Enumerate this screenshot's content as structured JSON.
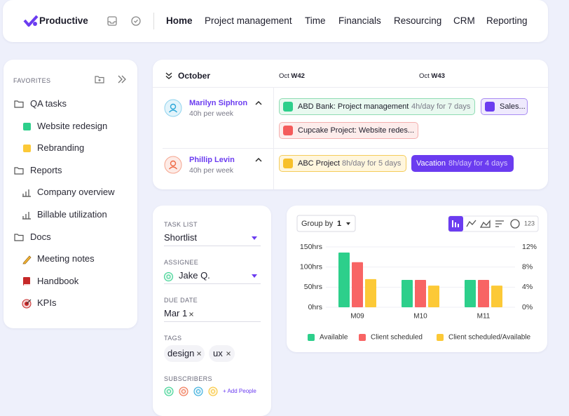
{
  "nav": {
    "brand": "Productive",
    "links": [
      "Home",
      "Project management",
      "Time",
      "Financials",
      "Resourcing",
      "CRM",
      "Reporting"
    ]
  },
  "sidebar": {
    "heading": "FAVORITES",
    "items": [
      "QA tasks",
      "Website redesign",
      "Rebranding",
      "Reports",
      "Company overview",
      "Billable utilization",
      "Docs",
      "Meeting notes",
      "Handbook",
      "KPIs"
    ]
  },
  "schedule": {
    "month": "October",
    "weeks": [
      {
        "month": "Oct",
        "week": "W42"
      },
      {
        "month": "Oct",
        "week": "W43"
      }
    ],
    "people": [
      {
        "name": "Marilyn Siphron",
        "capacity": "40h per week",
        "bookings": [
          {
            "title": "ABD Bank: Project management",
            "detail": "4h/day for 7 days"
          },
          {
            "title": "Sales..."
          },
          {
            "title": "Cupcake Project: Website redes..."
          }
        ]
      },
      {
        "name": "Phillip Levin",
        "capacity": "40h per week",
        "bookings": [
          {
            "title": "ABC Project",
            "detail": "8h/day for 5 days"
          },
          {
            "title": "Vacation",
            "detail": "8h/day for 4 days"
          }
        ]
      }
    ]
  },
  "task_form": {
    "task_list": {
      "label": "TASK LIST",
      "value": "Shortlist"
    },
    "assignee": {
      "label": "ASSIGNEE",
      "value": "Jake Q."
    },
    "due_date": {
      "label": "DUE DATE",
      "value": "Mar 1"
    },
    "tags": {
      "label": "TAGS",
      "values": [
        "design",
        "ux"
      ]
    },
    "subscribers": {
      "label": "SUBSCRIBERS",
      "action": "+ Add People"
    }
  },
  "chart_toolbar": {
    "group_by_label": "Group by",
    "group_by_value": "1",
    "number_view": "123"
  },
  "chart_data": {
    "type": "bar",
    "categories": [
      "M09",
      "M10",
      "M11"
    ],
    "series": [
      {
        "name": "Available",
        "color": "#2dcf8b",
        "values": [
          136,
          68,
          68
        ]
      },
      {
        "name": "Client scheduled",
        "color": "#f86464",
        "values": [
          112,
          68,
          68
        ]
      },
      {
        "name": "Client scheduled/Available",
        "color": "#fcc937",
        "values": [
          5.6,
          4.3,
          4.3
        ],
        "axis": "y2"
      }
    ],
    "ylim": [
      0,
      150
    ],
    "yticks": [
      {
        "value": 0,
        "label": "0hrs"
      },
      {
        "value": 50,
        "label": "50hrs"
      },
      {
        "value": 100,
        "label": "100hrs"
      },
      {
        "value": 150,
        "label": "150hrs"
      }
    ],
    "y2lim": [
      0,
      12
    ],
    "y2ticks": [
      {
        "value": 0,
        "label": "0%"
      },
      {
        "value": 4,
        "label": "4%"
      },
      {
        "value": 8,
        "label": "8%"
      },
      {
        "value": 12,
        "label": "12%"
      }
    ],
    "grid": true,
    "legend": "bottom"
  }
}
